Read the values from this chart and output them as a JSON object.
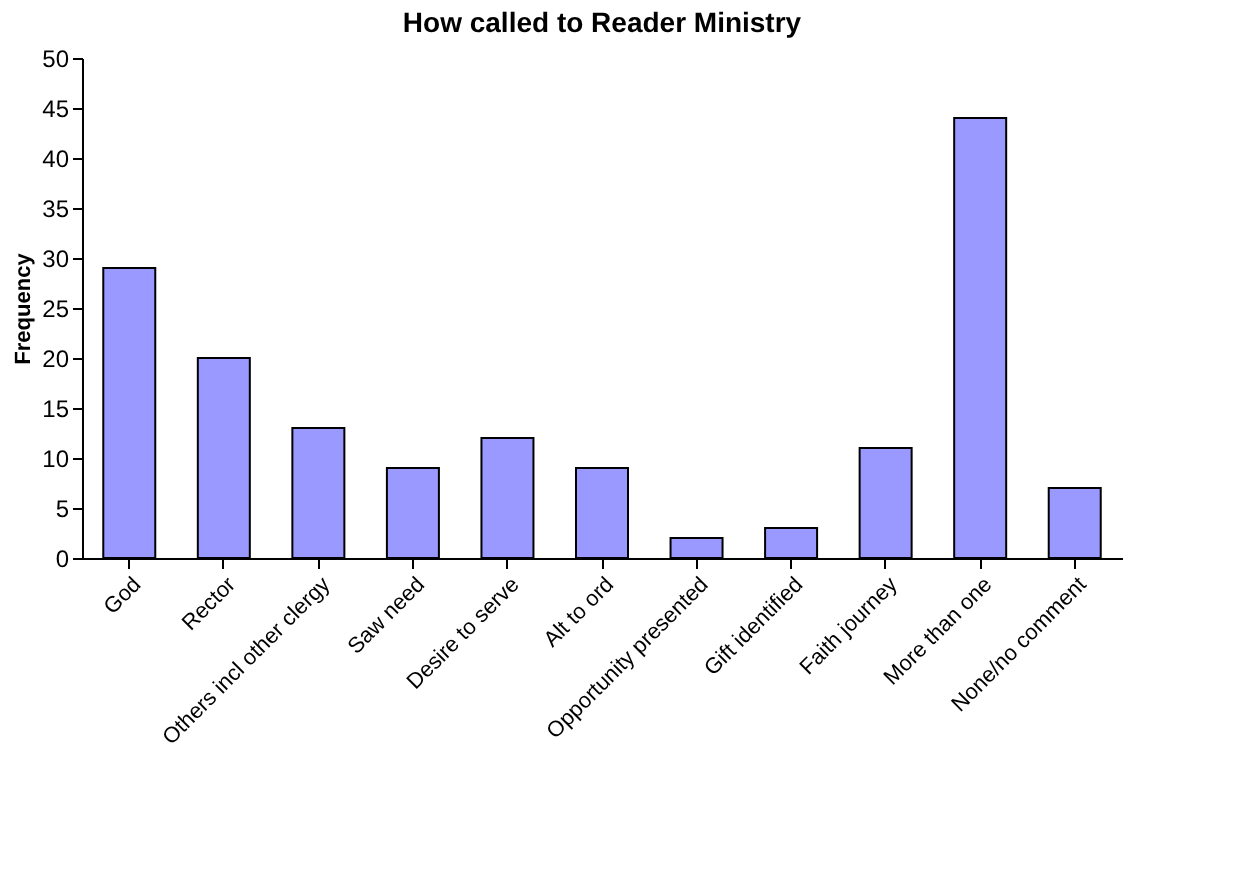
{
  "chart_data": {
    "type": "bar",
    "title": "How called to Reader Ministry",
    "ylabel": "Frequency",
    "categories": [
      "God",
      "Rector",
      "Others incl other clergy",
      "Saw need",
      "Desire to serve",
      "Alt to ord",
      "Opportunity presented",
      "Gift identified",
      "Faith journey",
      "More than one",
      "None/no comment"
    ],
    "values": [
      29,
      20,
      13,
      9,
      12,
      9,
      2,
      3,
      11,
      44,
      7
    ],
    "color": "#9999ff",
    "ylim": [
      0,
      50
    ],
    "yticks": [
      0,
      5,
      10,
      15,
      20,
      25,
      30,
      35,
      40,
      45,
      50
    ],
    "grid": false
  }
}
